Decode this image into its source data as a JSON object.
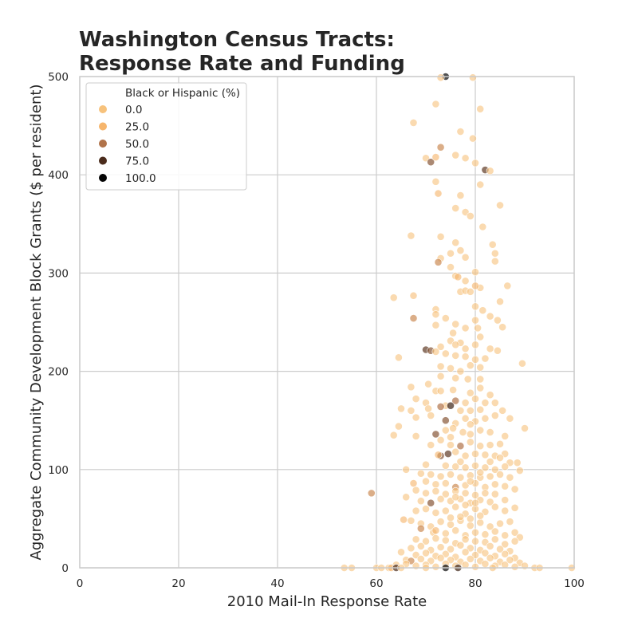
{
  "chart_data": {
    "type": "scatter",
    "title_line1": "Washington Census Tracts:",
    "title_line2": "Response Rate and Funding",
    "xlabel": "2010 Mail-In Response Rate",
    "ylabel": "Aggregate Community Development Block Grants ($ per resident)",
    "xlim": [
      0,
      100
    ],
    "ylim": [
      0,
      500
    ],
    "xticks": [
      "0",
      "20",
      "40",
      "60",
      "80",
      "100"
    ],
    "yticks": [
      "0",
      "100",
      "200",
      "300",
      "400",
      "500"
    ],
    "grid": true,
    "legend": {
      "title": "Black or Hispanic (%)",
      "placement": "top-left",
      "entries": [
        {
          "label": "0.0",
          "color": "#f7c27c"
        },
        {
          "label": "25.0",
          "color": "#f6b56c"
        },
        {
          "label": "50.0",
          "color": "#b1734a"
        },
        {
          "label": "75.0",
          "color": "#4b2c1c"
        },
        {
          "label": "100.0",
          "color": "#050505"
        }
      ]
    },
    "colors": {
      "grid": "#cccccc",
      "frame": "#cccccc",
      "marker_edge": "#ffffff"
    },
    "points": [
      [
        74,
        500,
        100
      ],
      [
        79.5,
        499,
        0
      ],
      [
        73,
        499,
        10
      ],
      [
        72,
        472,
        0
      ],
      [
        81,
        467,
        0
      ],
      [
        67.5,
        453,
        0
      ],
      [
        77,
        444,
        0
      ],
      [
        76,
        420,
        5
      ],
      [
        78,
        417,
        0
      ],
      [
        79.5,
        437,
        0
      ],
      [
        80,
        412,
        0
      ],
      [
        73,
        428,
        40
      ],
      [
        70,
        417,
        0
      ],
      [
        71,
        413,
        60
      ],
      [
        72,
        418,
        25
      ],
      [
        82,
        405,
        70
      ],
      [
        83,
        404,
        0
      ],
      [
        81,
        390,
        0
      ],
      [
        72,
        393,
        0
      ],
      [
        72.5,
        381,
        25
      ],
      [
        77,
        379,
        0
      ],
      [
        78,
        362,
        0
      ],
      [
        76,
        366,
        0
      ],
      [
        79,
        358,
        0
      ],
      [
        85,
        369,
        0
      ],
      [
        81.5,
        347,
        0
      ],
      [
        67,
        338,
        0
      ],
      [
        73,
        337,
        0
      ],
      [
        76,
        331,
        0
      ],
      [
        77,
        323,
        0
      ],
      [
        75,
        320,
        0
      ],
      [
        78,
        316,
        0
      ],
      [
        83.5,
        329,
        0
      ],
      [
        84,
        320,
        0
      ],
      [
        84,
        312,
        0
      ],
      [
        73,
        315,
        0
      ],
      [
        72.5,
        311,
        40
      ],
      [
        75,
        306,
        0
      ],
      [
        80,
        301,
        0
      ],
      [
        76,
        297,
        0
      ],
      [
        76.5,
        296,
        25
      ],
      [
        78,
        292,
        0
      ],
      [
        81,
        285,
        0
      ],
      [
        80,
        287,
        25
      ],
      [
        86.5,
        287,
        0
      ],
      [
        63.5,
        275,
        0
      ],
      [
        67.5,
        277,
        10
      ],
      [
        72,
        263,
        0
      ],
      [
        77,
        281,
        0
      ],
      [
        78,
        282,
        0
      ],
      [
        79,
        281,
        0
      ],
      [
        85,
        271,
        0
      ],
      [
        80,
        266,
        0
      ],
      [
        81.5,
        262,
        0
      ],
      [
        72,
        258,
        0
      ],
      [
        76,
        248,
        0
      ],
      [
        80,
        252,
        0
      ],
      [
        83,
        256,
        0
      ],
      [
        84.5,
        252,
        0
      ],
      [
        85.5,
        245,
        0
      ],
      [
        67.5,
        254,
        40
      ],
      [
        74,
        254,
        0
      ],
      [
        78,
        244,
        0
      ],
      [
        72,
        247,
        0
      ],
      [
        80.5,
        244,
        0
      ],
      [
        75.5,
        239,
        0
      ],
      [
        81,
        235,
        0
      ],
      [
        75,
        231,
        0
      ],
      [
        77,
        229,
        5
      ],
      [
        73,
        225,
        0
      ],
      [
        76,
        227,
        0
      ],
      [
        78,
        223,
        0
      ],
      [
        80,
        227,
        0
      ],
      [
        83,
        223,
        0
      ],
      [
        84.5,
        221,
        0
      ],
      [
        64.5,
        214,
        0
      ],
      [
        70,
        222,
        70
      ],
      [
        71,
        221,
        60
      ],
      [
        72,
        220,
        0
      ],
      [
        74,
        218,
        0
      ],
      [
        76,
        216,
        0
      ],
      [
        78,
        215,
        0
      ],
      [
        80,
        212,
        0
      ],
      [
        82,
        213,
        0
      ],
      [
        73,
        205,
        0
      ],
      [
        75,
        203,
        0
      ],
      [
        77,
        200,
        0
      ],
      [
        79,
        206,
        0
      ],
      [
        81,
        204,
        0
      ],
      [
        89.5,
        208,
        0
      ],
      [
        73,
        195,
        0
      ],
      [
        76,
        193,
        0
      ],
      [
        78.5,
        192,
        0
      ],
      [
        81,
        192,
        0
      ],
      [
        70.5,
        187,
        0
      ],
      [
        67,
        184,
        0
      ],
      [
        72,
        180,
        0
      ],
      [
        73,
        180,
        0
      ],
      [
        75.5,
        181,
        0
      ],
      [
        79,
        178,
        0
      ],
      [
        81,
        183,
        0
      ],
      [
        83,
        176,
        0
      ],
      [
        68,
        172,
        0
      ],
      [
        70,
        168,
        0
      ],
      [
        74,
        165,
        0
      ],
      [
        76,
        170,
        50
      ],
      [
        78,
        168,
        0
      ],
      [
        80,
        172,
        0
      ],
      [
        82,
        168,
        0
      ],
      [
        84,
        168,
        0
      ],
      [
        65,
        162,
        0
      ],
      [
        67,
        160,
        0
      ],
      [
        70.5,
        162,
        0
      ],
      [
        73,
        164,
        50
      ],
      [
        75,
        165,
        80
      ],
      [
        77,
        160,
        0
      ],
      [
        79,
        160,
        0
      ],
      [
        81,
        161,
        0
      ],
      [
        84,
        155,
        0
      ],
      [
        85.5,
        160,
        0
      ],
      [
        64.5,
        144,
        0
      ],
      [
        63.5,
        135,
        0
      ],
      [
        68,
        153,
        0
      ],
      [
        71,
        155,
        0
      ],
      [
        74,
        150,
        60
      ],
      [
        76,
        147,
        0
      ],
      [
        78,
        152,
        0
      ],
      [
        80,
        149,
        0
      ],
      [
        82,
        152,
        0
      ],
      [
        87,
        152,
        0
      ],
      [
        72,
        136,
        60
      ],
      [
        74,
        140,
        0
      ],
      [
        75.5,
        142,
        0
      ],
      [
        77.5,
        138,
        0
      ],
      [
        79,
        136,
        0
      ],
      [
        81,
        140,
        0
      ],
      [
        83,
        138,
        0
      ],
      [
        86,
        134,
        0
      ],
      [
        90,
        142,
        0
      ],
      [
        68,
        134,
        0
      ],
      [
        71,
        125,
        0
      ],
      [
        73,
        130,
        0
      ],
      [
        75,
        125,
        0
      ],
      [
        77,
        124,
        50
      ],
      [
        79,
        128,
        0
      ],
      [
        81,
        124,
        0
      ],
      [
        83,
        125,
        0
      ],
      [
        85,
        126,
        0
      ],
      [
        73,
        114,
        60
      ],
      [
        74.5,
        116,
        70
      ],
      [
        72.5,
        115,
        25
      ],
      [
        76,
        118,
        0
      ],
      [
        78,
        114,
        0
      ],
      [
        80,
        116,
        0
      ],
      [
        82,
        115,
        0
      ],
      [
        84,
        114,
        0
      ],
      [
        86,
        116,
        0
      ],
      [
        87,
        107,
        0
      ],
      [
        88.5,
        107,
        0
      ],
      [
        66,
        100,
        0
      ],
      [
        70,
        105,
        0
      ],
      [
        74,
        104,
        0
      ],
      [
        76,
        103,
        0
      ],
      [
        78,
        102,
        0
      ],
      [
        80,
        104,
        0
      ],
      [
        82,
        102,
        0
      ],
      [
        84,
        100,
        0
      ],
      [
        86,
        103,
        0
      ],
      [
        89,
        99,
        0
      ],
      [
        69,
        96,
        0
      ],
      [
        71,
        95,
        0
      ],
      [
        73,
        93,
        0
      ],
      [
        75,
        95,
        0
      ],
      [
        77,
        92,
        0
      ],
      [
        79,
        94,
        0
      ],
      [
        81,
        92,
        0
      ],
      [
        83,
        93,
        0
      ],
      [
        85,
        95,
        0
      ],
      [
        87,
        92,
        0
      ],
      [
        67.5,
        86,
        25
      ],
      [
        70,
        88,
        0
      ],
      [
        72,
        85,
        0
      ],
      [
        74,
        86,
        0
      ],
      [
        76,
        82,
        40
      ],
      [
        78,
        84,
        0
      ],
      [
        80,
        86,
        0
      ],
      [
        82,
        82,
        0
      ],
      [
        84,
        85,
        0
      ],
      [
        86,
        83,
        0
      ],
      [
        88,
        80,
        0
      ],
      [
        59,
        76,
        40
      ],
      [
        68,
        79,
        0
      ],
      [
        70,
        76,
        0
      ],
      [
        72,
        78,
        0
      ],
      [
        74,
        75,
        0
      ],
      [
        76,
        78,
        0
      ],
      [
        78,
        76,
        0
      ],
      [
        80,
        74,
        0
      ],
      [
        82,
        76,
        0
      ],
      [
        84,
        75,
        0
      ],
      [
        66,
        72,
        0
      ],
      [
        69,
        68,
        0
      ],
      [
        71,
        66,
        60
      ],
      [
        73,
        70,
        0
      ],
      [
        75,
        68,
        0
      ],
      [
        77,
        70,
        0
      ],
      [
        79,
        66,
        0
      ],
      [
        81,
        69,
        0
      ],
      [
        83,
        67,
        0
      ],
      [
        86,
        69,
        0
      ],
      [
        65.5,
        49,
        25
      ],
      [
        68,
        58,
        0
      ],
      [
        70,
        60,
        0
      ],
      [
        72,
        56,
        0
      ],
      [
        74,
        58,
        0
      ],
      [
        76,
        62,
        0
      ],
      [
        78,
        55,
        0
      ],
      [
        80,
        60,
        0
      ],
      [
        82,
        57,
        0
      ],
      [
        84,
        62,
        0
      ],
      [
        86,
        58,
        0
      ],
      [
        88,
        61,
        0
      ],
      [
        67,
        48,
        0
      ],
      [
        69,
        45,
        0
      ],
      [
        71,
        42,
        0
      ],
      [
        73,
        47,
        0
      ],
      [
        75,
        44,
        0
      ],
      [
        77,
        48,
        0
      ],
      [
        79,
        43,
        0
      ],
      [
        81,
        46,
        0
      ],
      [
        83,
        42,
        0
      ],
      [
        85,
        45,
        0
      ],
      [
        87,
        47,
        0
      ],
      [
        69,
        40,
        40
      ],
      [
        71.5,
        36,
        0
      ],
      [
        72,
        38,
        25
      ],
      [
        74,
        35,
        0
      ],
      [
        76,
        38,
        0
      ],
      [
        78,
        33,
        0
      ],
      [
        80,
        36,
        0
      ],
      [
        82,
        34,
        0
      ],
      [
        84,
        37,
        0
      ],
      [
        86,
        33,
        0
      ],
      [
        88,
        36,
        0
      ],
      [
        89,
        31,
        0
      ],
      [
        68,
        29,
        0
      ],
      [
        70,
        27,
        0
      ],
      [
        72,
        30,
        0
      ],
      [
        74,
        28,
        0
      ],
      [
        76,
        25,
        0
      ],
      [
        78,
        29,
        0
      ],
      [
        80,
        27,
        0
      ],
      [
        82,
        26,
        0
      ],
      [
        84,
        29,
        0
      ],
      [
        86,
        24,
        0
      ],
      [
        88,
        27,
        0
      ],
      [
        67,
        20,
        0
      ],
      [
        69,
        22,
        0
      ],
      [
        71,
        18,
        0
      ],
      [
        73,
        21,
        0
      ],
      [
        75,
        19,
        0
      ],
      [
        77,
        23,
        0
      ],
      [
        79,
        20,
        0
      ],
      [
        81,
        18,
        0
      ],
      [
        83,
        22,
        0
      ],
      [
        85,
        19,
        0
      ],
      [
        87,
        17,
        0
      ],
      [
        65,
        16,
        0
      ],
      [
        68,
        13,
        0
      ],
      [
        70,
        15,
        0
      ],
      [
        72,
        12,
        0
      ],
      [
        74,
        14,
        0
      ],
      [
        76,
        11,
        0
      ],
      [
        78,
        16,
        0
      ],
      [
        80,
        13,
        0
      ],
      [
        82,
        15,
        0
      ],
      [
        84,
        12,
        0
      ],
      [
        86,
        14,
        0
      ],
      [
        88,
        10,
        0
      ],
      [
        66,
        8,
        0
      ],
      [
        67,
        7,
        40
      ],
      [
        69,
        9,
        0
      ],
      [
        71,
        7,
        0
      ],
      [
        73,
        10,
        0
      ],
      [
        75,
        8,
        0
      ],
      [
        77,
        6,
        0
      ],
      [
        79,
        9,
        0
      ],
      [
        81,
        7,
        0
      ],
      [
        83,
        10,
        0
      ],
      [
        85,
        6,
        0
      ],
      [
        87,
        8,
        0
      ],
      [
        89,
        5,
        0
      ],
      [
        64,
        3,
        0
      ],
      [
        66,
        4,
        0
      ],
      [
        68,
        2,
        0
      ],
      [
        70,
        3,
        0
      ],
      [
        72,
        1,
        0
      ],
      [
        74,
        4,
        0
      ],
      [
        76,
        2,
        0
      ],
      [
        78,
        3,
        0
      ],
      [
        80,
        1,
        0
      ],
      [
        82,
        4,
        0
      ],
      [
        84,
        2,
        0
      ],
      [
        86,
        3,
        0
      ],
      [
        88,
        1,
        0
      ],
      [
        90,
        2,
        0
      ],
      [
        92,
        0,
        0
      ],
      [
        93,
        0,
        0
      ],
      [
        53.5,
        0,
        0
      ],
      [
        55,
        0,
        0
      ],
      [
        60,
        0,
        0
      ],
      [
        61,
        0,
        0
      ],
      [
        62.5,
        0,
        0
      ],
      [
        63,
        0,
        25
      ],
      [
        64,
        0,
        75
      ],
      [
        65,
        0,
        0
      ],
      [
        70,
        0,
        0
      ],
      [
        74,
        0,
        100
      ],
      [
        76.5,
        0,
        80
      ],
      [
        83.5,
        0,
        0
      ],
      [
        99.5,
        0,
        0
      ],
      [
        77,
        52,
        0
      ],
      [
        79,
        50,
        0
      ],
      [
        81,
        53,
        0
      ],
      [
        75,
        51,
        0
      ],
      [
        78,
        64,
        0
      ],
      [
        80,
        66,
        0
      ],
      [
        76,
        72,
        0
      ],
      [
        79,
        88,
        0
      ],
      [
        81,
        97,
        0
      ],
      [
        77,
        108,
        0
      ],
      [
        83,
        108,
        0
      ],
      [
        85,
        112,
        0
      ],
      [
        75,
        133,
        0
      ],
      [
        79,
        146,
        0
      ]
    ]
  }
}
